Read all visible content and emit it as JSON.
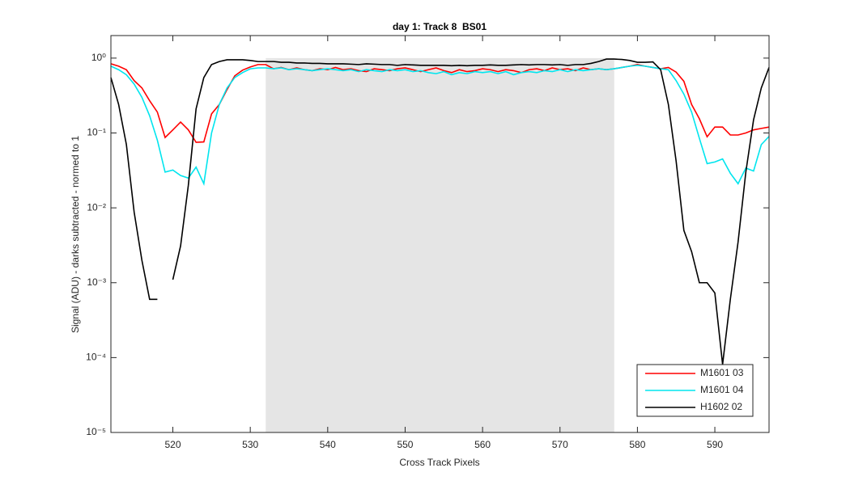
{
  "chart_data": {
    "type": "line",
    "title": "day 1: Track 8  BS01",
    "xlabel": "Cross Track Pixels",
    "ylabel": "Signal (ADU) - darks subtracted - normed to 1",
    "x": [
      512,
      513,
      514,
      515,
      516,
      517,
      518,
      519,
      520,
      521,
      522,
      523,
      524,
      525,
      526,
      527,
      528,
      529,
      530,
      531,
      532,
      533,
      534,
      535,
      536,
      537,
      538,
      539,
      540,
      541,
      542,
      543,
      544,
      545,
      546,
      547,
      548,
      549,
      550,
      551,
      552,
      553,
      554,
      555,
      556,
      557,
      558,
      559,
      560,
      561,
      562,
      563,
      564,
      565,
      566,
      567,
      568,
      569,
      570,
      571,
      572,
      573,
      574,
      575,
      576,
      577,
      578,
      579,
      580,
      581,
      582,
      583,
      584,
      585,
      586,
      587,
      588,
      589,
      590,
      591,
      592,
      593,
      594,
      595,
      596,
      597
    ],
    "series": [
      {
        "name": "M1601 03",
        "color": "#ff0000",
        "values": [
          0.84,
          0.78,
          0.7,
          0.5,
          0.4,
          0.27,
          0.19,
          0.087,
          0.11,
          0.14,
          0.11,
          0.075,
          0.076,
          0.18,
          0.24,
          0.38,
          0.58,
          0.69,
          0.76,
          0.82,
          0.82,
          0.72,
          0.75,
          0.7,
          0.74,
          0.7,
          0.68,
          0.72,
          0.7,
          0.75,
          0.7,
          0.72,
          0.68,
          0.66,
          0.72,
          0.7,
          0.68,
          0.72,
          0.74,
          0.7,
          0.66,
          0.7,
          0.74,
          0.68,
          0.64,
          0.7,
          0.66,
          0.68,
          0.72,
          0.7,
          0.66,
          0.7,
          0.68,
          0.64,
          0.7,
          0.72,
          0.68,
          0.74,
          0.7,
          0.72,
          0.68,
          0.74,
          0.7,
          0.72,
          0.7,
          0.72,
          0.75,
          0.78,
          0.82,
          0.78,
          0.75,
          0.72,
          0.75,
          0.65,
          0.49,
          0.24,
          0.155,
          0.089,
          0.12,
          0.12,
          0.094,
          0.094,
          0.1,
          0.11,
          0.115,
          0.12
        ]
      },
      {
        "name": "M1601 04",
        "color": "#00e5ee",
        "values": [
          0.78,
          0.7,
          0.6,
          0.45,
          0.3,
          0.17,
          0.08,
          0.03,
          0.032,
          0.027,
          0.025,
          0.035,
          0.021,
          0.1,
          0.24,
          0.4,
          0.55,
          0.64,
          0.72,
          0.74,
          0.74,
          0.72,
          0.74,
          0.7,
          0.72,
          0.7,
          0.68,
          0.7,
          0.72,
          0.7,
          0.68,
          0.7,
          0.66,
          0.7,
          0.68,
          0.66,
          0.7,
          0.68,
          0.7,
          0.66,
          0.68,
          0.64,
          0.62,
          0.66,
          0.6,
          0.64,
          0.62,
          0.66,
          0.64,
          0.66,
          0.62,
          0.66,
          0.6,
          0.64,
          0.66,
          0.64,
          0.68,
          0.66,
          0.7,
          0.66,
          0.7,
          0.68,
          0.7,
          0.72,
          0.7,
          0.72,
          0.75,
          0.78,
          0.8,
          0.78,
          0.75,
          0.72,
          0.7,
          0.5,
          0.33,
          0.19,
          0.085,
          0.039,
          0.041,
          0.045,
          0.029,
          0.021,
          0.034,
          0.031,
          0.07,
          0.09
        ]
      },
      {
        "name": "H1602 02",
        "color": "#000000",
        "values": [
          0.55,
          0.24,
          0.07,
          0.0088,
          0.002,
          0.0006,
          0.0006,
          null,
          0.0011,
          0.0031,
          0.02,
          0.21,
          0.55,
          0.82,
          0.9,
          0.95,
          0.95,
          0.95,
          0.93,
          0.9,
          0.9,
          0.9,
          0.88,
          0.88,
          0.86,
          0.86,
          0.85,
          0.85,
          0.84,
          0.84,
          0.84,
          0.83,
          0.82,
          0.84,
          0.83,
          0.82,
          0.82,
          0.8,
          0.82,
          0.81,
          0.8,
          0.8,
          0.8,
          0.8,
          0.79,
          0.8,
          0.79,
          0.8,
          0.8,
          0.81,
          0.8,
          0.8,
          0.81,
          0.82,
          0.81,
          0.82,
          0.82,
          0.81,
          0.82,
          0.8,
          0.82,
          0.82,
          0.85,
          0.9,
          0.97,
          0.97,
          0.96,
          0.93,
          0.88,
          0.88,
          0.89,
          0.7,
          0.24,
          0.042,
          0.005,
          0.0026,
          0.001,
          0.001,
          0.00073,
          8.1e-05,
          0.0006,
          0.0035,
          0.03,
          0.15,
          0.4,
          0.75
        ]
      }
    ],
    "shaded_region": {
      "x": [
        532,
        577
      ],
      "color": "#e5e5e5"
    },
    "xlim": [
      512,
      597
    ],
    "xticks": [
      520,
      530,
      540,
      550,
      560,
      570,
      580,
      590
    ],
    "ylim": [
      1e-05,
      2
    ],
    "yscale": "log",
    "yticks": [
      {
        "value": 1e-05,
        "label": "10⁻⁵"
      },
      {
        "value": 0.0001,
        "label": "10⁻⁴"
      },
      {
        "value": 0.001,
        "label": "10⁻³"
      },
      {
        "value": 0.01,
        "label": "10⁻²"
      },
      {
        "value": 0.1,
        "label": "10⁻¹"
      },
      {
        "value": 1,
        "label": "10⁰"
      }
    ],
    "legend": "lower right"
  }
}
